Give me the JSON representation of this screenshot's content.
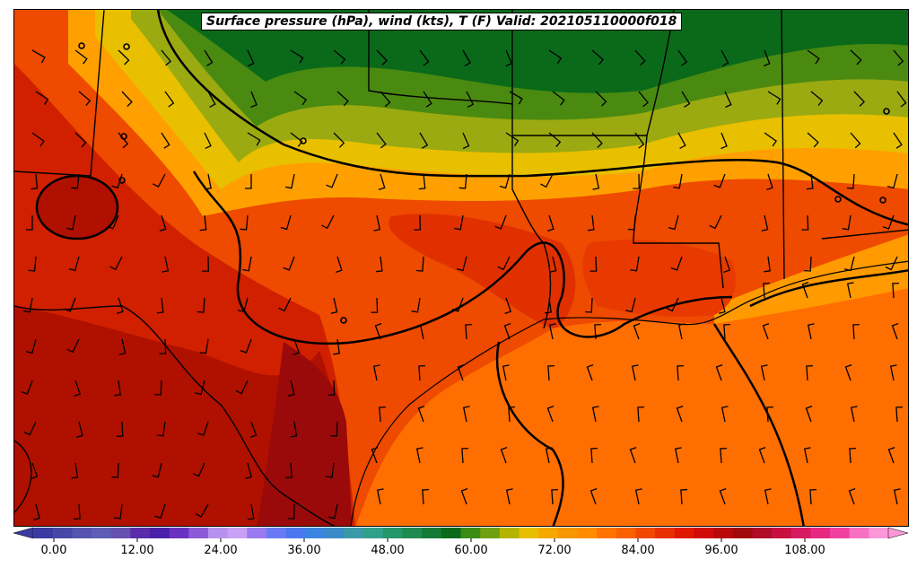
{
  "title": "Surface pressure (hPa), wind (kts), T (F) Valid: 202105110000f018",
  "colorbar": {
    "tick_labels": [
      "0.00",
      "12.00",
      "24.00",
      "36.00",
      "48.00",
      "60.00",
      "72.00",
      "84.00",
      "96.00",
      "108.00"
    ],
    "colors": [
      "#3a3aa0",
      "#4747a8",
      "#5555b0",
      "#5d5db5",
      "#6650b0",
      "#5a2eaa",
      "#4a20a8",
      "#6a30c0",
      "#8a5ad8",
      "#b890ee",
      "#c8a0f5",
      "#9a7af0",
      "#6a7af5",
      "#4a78f0",
      "#3a85e0",
      "#3a8ac8",
      "#3a9aa8",
      "#2fa08a",
      "#25956a",
      "#1e8a50",
      "#157a35",
      "#0a6a1a",
      "#3a8c14",
      "#6fa010",
      "#b4b400",
      "#e8be00",
      "#f4a800",
      "#f89800",
      "#ff8c00",
      "#ff7400",
      "#f86000",
      "#f04800",
      "#e83000",
      "#e01800",
      "#d00c08",
      "#b80a0a",
      "#a00a0a",
      "#b00c28",
      "#c81040",
      "#d81a60",
      "#e82880",
      "#f040a0",
      "#f870c0",
      "#fc98d8"
    ]
  },
  "legend_colors": {
    "very_hot": "#b01000",
    "hot": "#e03000",
    "warm": "#ff6a00",
    "mild": "#ff9a00",
    "cool_yellow": "#e8c000",
    "olive": "#9aaa10",
    "green": "#4a8a10",
    "dark_green": "#0a6a1a",
    "gulf": "#ff6e00"
  }
}
